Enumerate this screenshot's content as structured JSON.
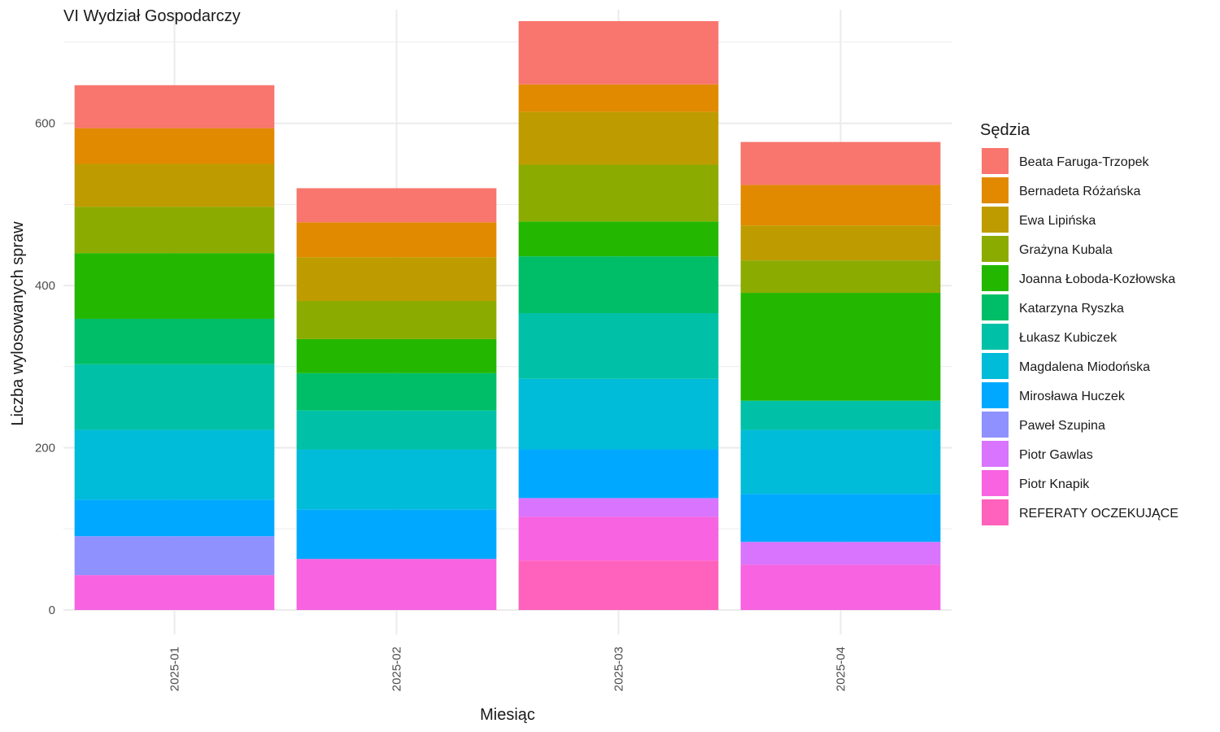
{
  "chart_data": {
    "type": "bar",
    "stacked": true,
    "title": "VI Wydział Gospodarczy",
    "xlabel": "Miesiąc",
    "ylabel": "Liczba wylosowanych spraw",
    "ylim": [
      0,
      740
    ],
    "yticks": [
      0,
      200,
      400,
      600
    ],
    "yticks_labels": [
      "0",
      "200",
      "400",
      "600"
    ],
    "grid": true,
    "legend_title": "Sędzia",
    "legend_position": "right",
    "categories": [
      "2025-01",
      "2025-02",
      "2025-03",
      "2025-04"
    ],
    "series": [
      {
        "name": "REFERATY OCZEKUJĄCE",
        "color": "#FF62BC",
        "values": [
          0,
          0,
          61,
          0
        ]
      },
      {
        "name": "Piotr Knapik",
        "color": "#F763E0",
        "values": [
          43,
          63,
          54,
          56
        ]
      },
      {
        "name": "Piotr Gawlas",
        "color": "#D874FD",
        "values": [
          0,
          0,
          23,
          28
        ]
      },
      {
        "name": "Paweł Szupina",
        "color": "#8F91FF",
        "values": [
          48,
          0,
          0,
          0
        ]
      },
      {
        "name": "Mirosława Huczek",
        "color": "#00A9FF",
        "values": [
          45,
          61,
          60,
          59
        ]
      },
      {
        "name": "Magdalena Miodońska",
        "color": "#00BCD8",
        "values": [
          86,
          74,
          87,
          79
        ]
      },
      {
        "name": "Łukasz Kubiczek",
        "color": "#00C1A7",
        "values": [
          81,
          48,
          81,
          36
        ]
      },
      {
        "name": "Katarzyna Ryszka",
        "color": "#00BE67",
        "values": [
          56,
          46,
          70,
          0
        ]
      },
      {
        "name": "Joanna Łoboda-Kozłowska",
        "color": "#24B700",
        "values": [
          81,
          42,
          43,
          133
        ]
      },
      {
        "name": "Grażyna Kubala",
        "color": "#8CAB00",
        "values": [
          57,
          47,
          70,
          40
        ]
      },
      {
        "name": "Ewa Lipińska",
        "color": "#BE9C00",
        "values": [
          53,
          54,
          65,
          43
        ]
      },
      {
        "name": "Bernadeta Różańska",
        "color": "#E18A00",
        "values": [
          44,
          43,
          34,
          50
        ]
      },
      {
        "name": "Beata Faruga-Trzopek",
        "color": "#F8766D",
        "values": [
          53,
          42,
          78,
          53
        ]
      }
    ]
  }
}
